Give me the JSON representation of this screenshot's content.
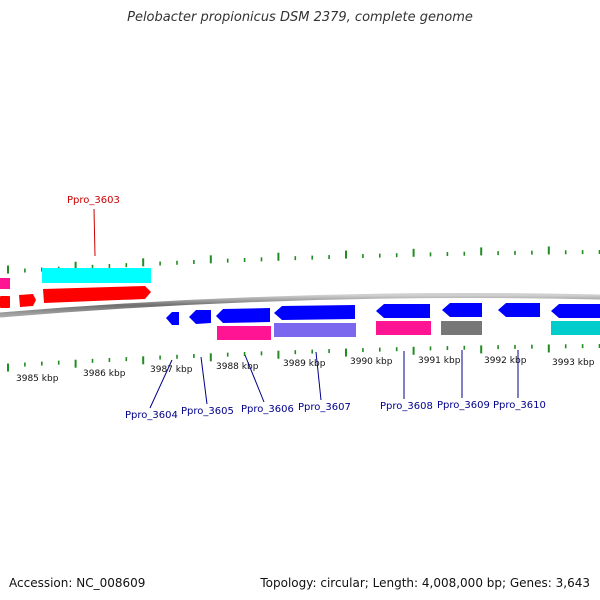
{
  "title": "Pelobacter propionicus DSM 2379, complete genome",
  "accession": "Accession: NC_008609",
  "summary": "Topology: circular; Length: 4,008,000 bp; Genes: 3,643",
  "ticks": [
    {
      "label": "3985 kbp"
    },
    {
      "label": "3986 kbp"
    },
    {
      "label": "3987 kbp"
    },
    {
      "label": "3988 kbp"
    },
    {
      "label": "3989 kbp"
    },
    {
      "label": "3990 kbp"
    },
    {
      "label": "3991 kbp"
    },
    {
      "label": "3992 kbp"
    },
    {
      "label": "3993 kbp"
    }
  ],
  "genes": [
    {
      "label": "Ppro_3603",
      "color": "#cc0000"
    },
    {
      "label": "Ppro_3604",
      "color": "#00008b"
    },
    {
      "label": "Ppro_3605",
      "color": "#00008b"
    },
    {
      "label": "Ppro_3606",
      "color": "#00008b"
    },
    {
      "label": "Ppro_3607",
      "color": "#00008b"
    },
    {
      "label": "Ppro_3608",
      "color": "#00008b"
    },
    {
      "label": "Ppro_3609",
      "color": "#00008b"
    },
    {
      "label": "Ppro_3610",
      "color": "#00008b"
    }
  ],
  "colors": {
    "forward_cds": "#ff0000",
    "reverse_cds": "#0000ff",
    "cyan": "#00ffff",
    "magenta": "#ff1493",
    "purple": "#7b68ee",
    "gray": "#777777",
    "teal": "#00cccc",
    "tick": "#228b22",
    "backbone": "#888888"
  }
}
